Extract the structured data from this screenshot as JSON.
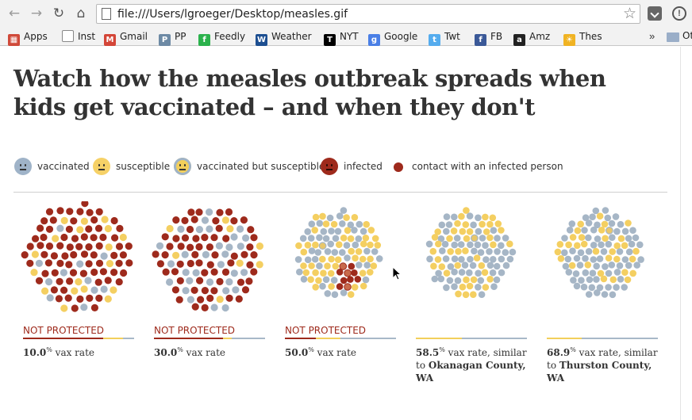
{
  "browser": {
    "url": "file:///Users/lgroeger/Desktop/measles.gif",
    "bookmarks": [
      {
        "label": "Apps",
        "icon": "apps-grid-icon",
        "color": "#d04a3a"
      },
      {
        "label": "Inst",
        "icon": "page-icon",
        "color": "#ffffff"
      },
      {
        "label": "Gmail",
        "icon": "gmail-icon",
        "color": "#d44638"
      },
      {
        "label": "PP",
        "icon": "pp-icon",
        "color": "#6d8aa5"
      },
      {
        "label": "Feedly",
        "icon": "feedly-icon",
        "color": "#2bb24c"
      },
      {
        "label": "Weather",
        "icon": "weather-channel-icon",
        "color": "#1d4f91"
      },
      {
        "label": "NYT",
        "icon": "nyt-icon",
        "color": "#000000"
      },
      {
        "label": "Google",
        "icon": "google-icon",
        "color": "#4a7fe6"
      },
      {
        "label": "Twt",
        "icon": "twitter-icon",
        "color": "#55acee"
      },
      {
        "label": "FB",
        "icon": "facebook-icon",
        "color": "#3b5998"
      },
      {
        "label": "Amz",
        "icon": "amazon-icon",
        "color": "#222222"
      },
      {
        "label": "Thes",
        "icon": "thesaurus-icon",
        "color": "#f0b323"
      }
    ],
    "more": "»",
    "other_label": "Ot"
  },
  "article": {
    "headline": "Watch how the measles outbreak spreads when kids get vaccinated – and when they don't"
  },
  "legend": [
    {
      "key": "vaccinated",
      "label": "vaccinated",
      "color": "#9fb3c8",
      "kind": "face"
    },
    {
      "key": "susceptible",
      "label": "susceptible",
      "color": "#f6d167",
      "kind": "face"
    },
    {
      "key": "vacc_susc",
      "label": "vaccinated but susceptible",
      "color": "#f2cf5b",
      "ring": "#9fb3c8",
      "kind": "face"
    },
    {
      "key": "infected",
      "label": "infected",
      "color": "#9e2a1c",
      "kind": "face"
    },
    {
      "key": "contact",
      "label": "contact with an infected person",
      "color": "#9e2a1c",
      "kind": "dot"
    }
  ],
  "colors": {
    "vaccinated": "#a6b6c6",
    "susceptible": "#f4cf61",
    "infected": "#9e2a1c",
    "vacc_susc": "#e8c76a",
    "contact": "#c86a4c"
  },
  "simulations": [
    {
      "status": "NOT PROTECTED",
      "rate": "10.0",
      "pct": "%",
      "caption_rest": " vax rate",
      "county_prefix": "",
      "county": "",
      "vax_fraction": 0.1,
      "infected_fraction": 0.72,
      "spread": "wide"
    },
    {
      "status": "NOT PROTECTED",
      "rate": "30.0",
      "pct": "%",
      "caption_rest": " vax rate",
      "county_prefix": "",
      "county": "",
      "vax_fraction": 0.3,
      "infected_fraction": 0.62,
      "spread": "wide"
    },
    {
      "status": "NOT PROTECTED",
      "rate": "50.0",
      "pct": "%",
      "caption_rest": " vax rate",
      "county_prefix": "",
      "county": "",
      "vax_fraction": 0.5,
      "infected_fraction": 0.09,
      "spread": "compact"
    },
    {
      "status": "",
      "rate": "58.5",
      "pct": "%",
      "caption_rest": " vax rate, similar",
      "county_prefix": "to ",
      "county": "Okanagan County, WA",
      "vax_fraction": 0.585,
      "infected_fraction": 0.0,
      "spread": "compact"
    },
    {
      "status": "",
      "rate": "68.9",
      "pct": "%",
      "caption_rest": " vax rate, similar",
      "county_prefix": "to ",
      "county": "Thurston County, WA",
      "vax_fraction": 0.689,
      "infected_fraction": 0.0,
      "spread": "compact"
    }
  ]
}
